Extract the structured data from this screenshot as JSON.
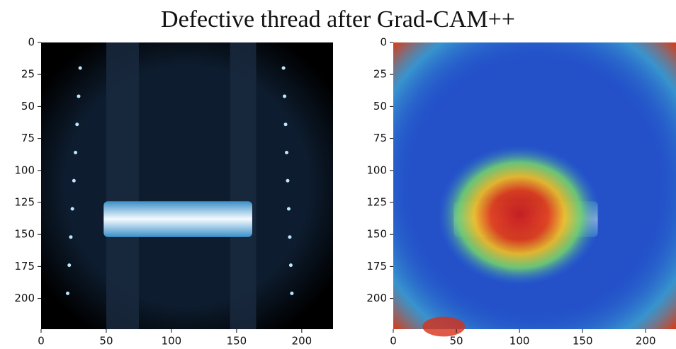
{
  "title": "Defective thread after Grad-CAM++",
  "chart_data": [
    {
      "type": "image",
      "xlim": [
        0,
        224
      ],
      "ylim": [
        0,
        224
      ],
      "yaxis_inverted": true,
      "xticks": [
        0,
        50,
        100,
        150,
        200
      ],
      "yticks": [
        0,
        25,
        50,
        75,
        100,
        125,
        150,
        175,
        200
      ]
    },
    {
      "type": "image",
      "xlim": [
        0,
        224
      ],
      "ylim": [
        0,
        224
      ],
      "yaxis_inverted": true,
      "xticks": [
        0,
        50,
        100,
        150,
        200
      ],
      "yticks": [
        0,
        25,
        50,
        75,
        100,
        125,
        150,
        175,
        200
      ]
    }
  ]
}
